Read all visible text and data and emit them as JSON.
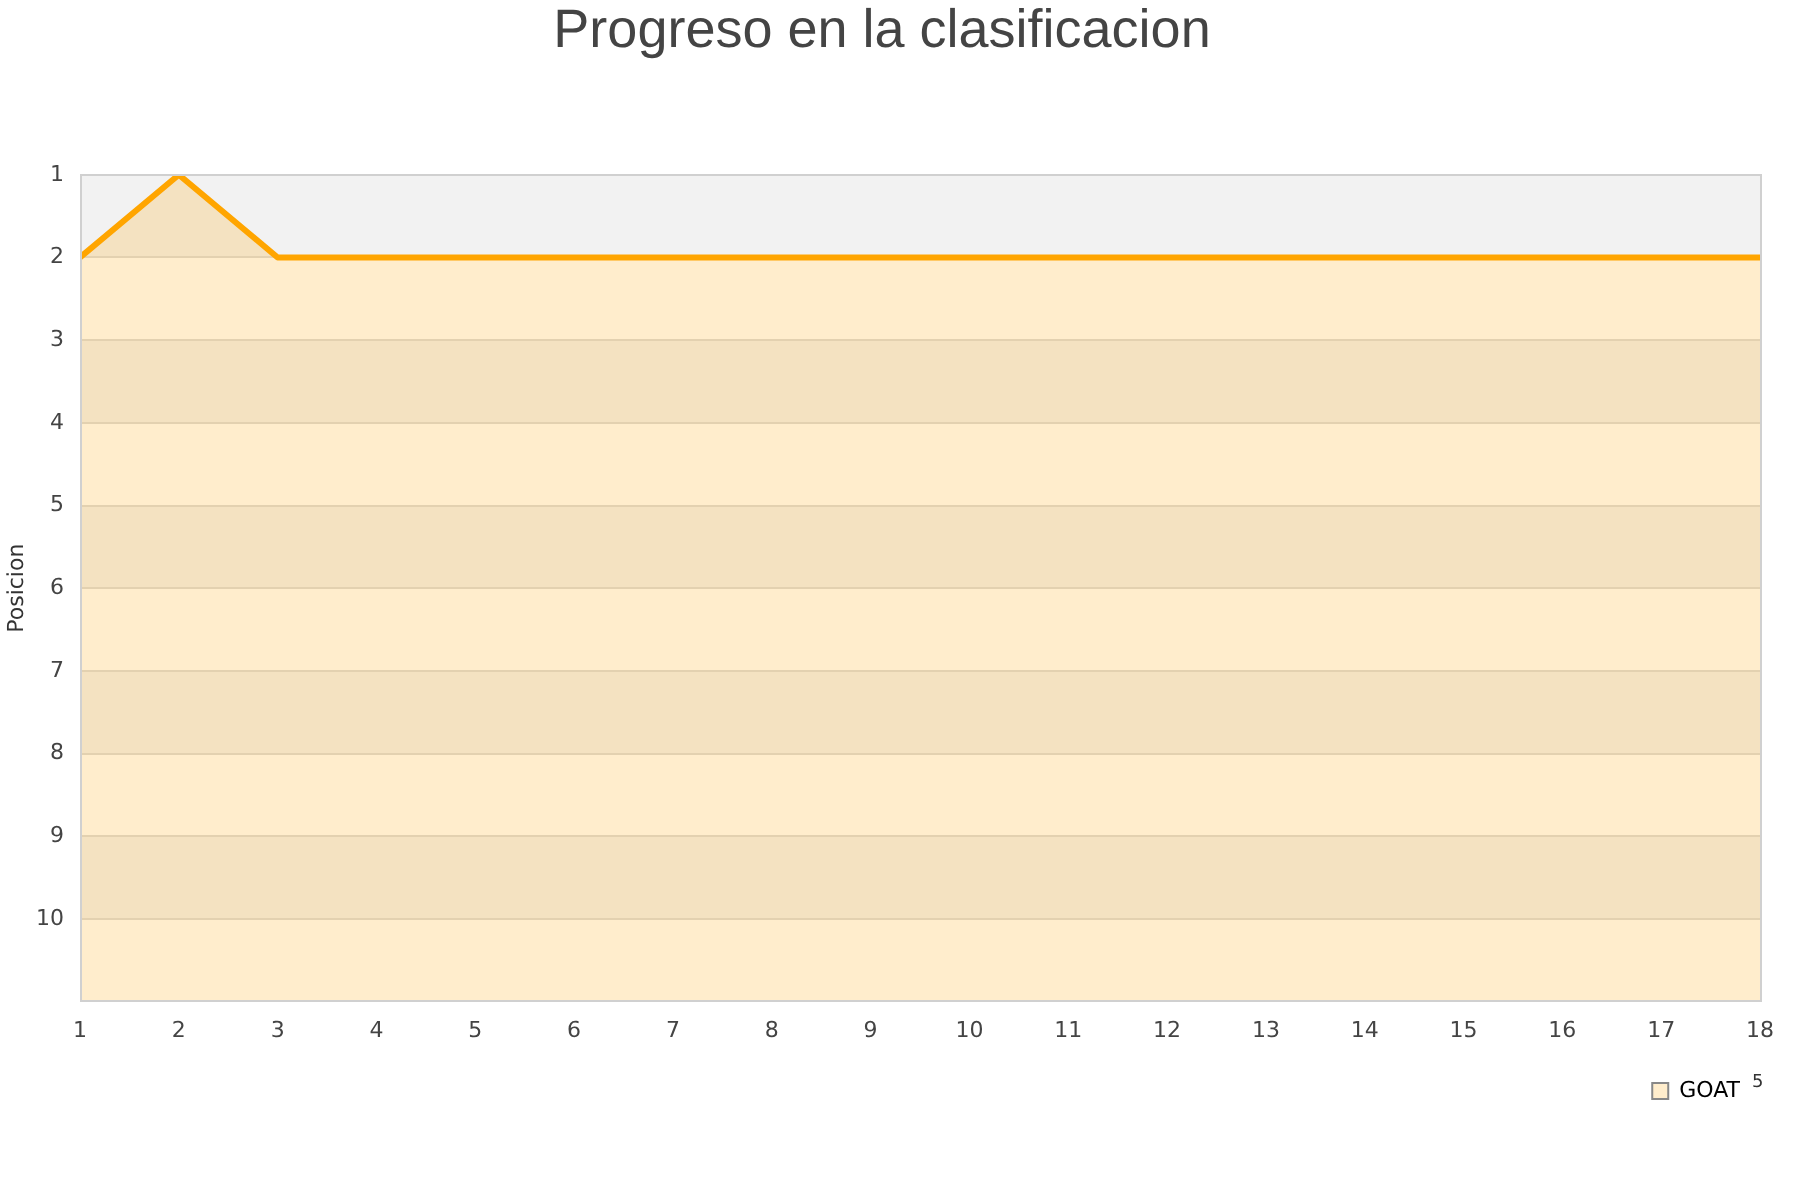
{
  "chart_data": {
    "type": "area",
    "title": "Progreso en la clasificacion",
    "ylabel": "Posicion",
    "x": [
      1,
      2,
      3,
      4,
      5,
      6,
      7,
      8,
      9,
      10,
      11,
      12,
      13,
      14,
      15,
      16,
      17,
      18
    ],
    "xlim": [
      1,
      18
    ],
    "xticks": [
      1,
      2,
      3,
      4,
      5,
      6,
      7,
      8,
      9,
      10,
      11,
      12,
      13,
      14,
      15,
      16,
      17,
      18
    ],
    "ylim": [
      11,
      1
    ],
    "yticks": [
      1,
      2,
      3,
      4,
      5,
      6,
      7,
      8,
      9,
      10
    ],
    "series": [
      {
        "name": "GOAT",
        "color": "#ffa500",
        "values": [
          2,
          1,
          2,
          2,
          2,
          2,
          2,
          2,
          2,
          2,
          2,
          2,
          2,
          2,
          2,
          2,
          2,
          2
        ]
      }
    ],
    "grid": "y",
    "legend": "bottom right",
    "marker": "none",
    "annotations": [
      "5"
    ]
  }
}
